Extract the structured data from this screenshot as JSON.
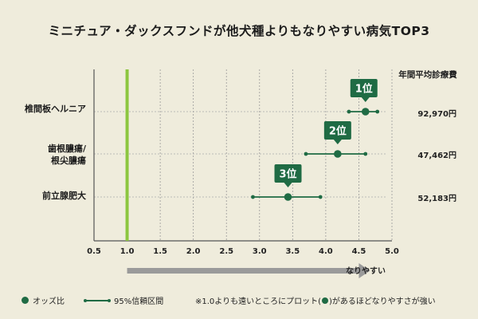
{
  "title": "ミニチュア・ダックスフンドが他犬種よりもなりやすい病気TOP3",
  "cost_header": "年間平均診療費",
  "chart_data": {
    "type": "forest",
    "xlim": [
      0.5,
      5.0
    ],
    "xticks": [
      "0.5",
      "1.0",
      "1.5",
      "2.0",
      "2.5",
      "3.0",
      "3.5",
      "4.0",
      "4.5",
      "5.0"
    ],
    "reference_x": 1.0,
    "x_arrow_label": "なりやすい",
    "rows": [
      {
        "label": "椎間板ヘルニア",
        "label_line2": "",
        "rank": "1位",
        "odds": 4.6,
        "ci_low": 4.35,
        "ci_high": 4.78,
        "cost": "92,970円"
      },
      {
        "label": "歯根膿瘍/",
        "label_line2": "根尖膿瘍",
        "rank": "2位",
        "odds": 4.18,
        "ci_low": 3.7,
        "ci_high": 4.6,
        "cost": "47,462円"
      },
      {
        "label": "前立腺肥大",
        "label_line2": "",
        "rank": "3位",
        "odds": 3.43,
        "ci_low": 2.9,
        "ci_high": 3.92,
        "cost": "52,183円"
      }
    ]
  },
  "legend": {
    "odds_label": "オッズ比",
    "ci_label": "95%信頼区間",
    "note_before": "※1.0よりも遠いところにプロット(",
    "note_after": ")があるほどなりやすさが強い"
  },
  "colors": {
    "marker": "#1f6b44",
    "reference_line": "#8cc63f",
    "arrow": "#9a9a9a",
    "axis": "#555555"
  }
}
